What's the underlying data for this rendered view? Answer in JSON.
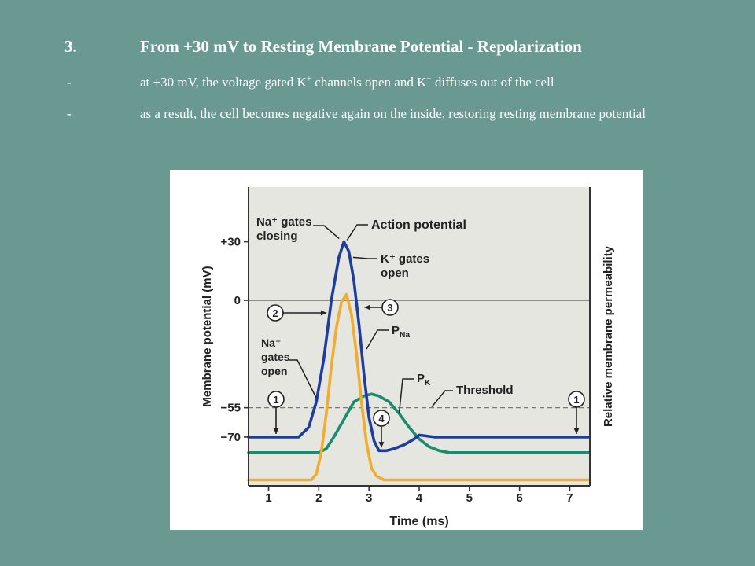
{
  "slide": {
    "title_number": "3.",
    "title_text": "From +30 mV to Resting Membrane Potential - Repolarization",
    "bullets": [
      {
        "dash": "-",
        "pre": "at +30 mV, the voltage gated K",
        "sup1": "+",
        "mid": " channels open and K",
        "sup2": "+",
        "post": " diffuses out of the cell"
      },
      {
        "dash": "-",
        "text": "as a result, the cell becomes negative again on the inside, restoring resting membrane potential"
      }
    ]
  },
  "chart_data": {
    "type": "line",
    "xlabel": "Time (ms)",
    "ylabel_left": "Membrane potential (mV)",
    "ylabel_right": "Relative membrane permeability",
    "x_ticks": [
      "1",
      "2",
      "3",
      "4",
      "5",
      "6",
      "7"
    ],
    "y_ticks": [
      "+30",
      "0",
      "−55",
      "−70"
    ],
    "xlim": [
      0.6,
      7.4
    ],
    "ylim": [
      -95,
      58
    ],
    "threshold_mv": -55,
    "resting_mv": -70,
    "zero_line_mv": 0,
    "grid": false,
    "series": [
      {
        "name": "Action potential",
        "color": "#1f3e9c",
        "x": [
          0.6,
          1.6,
          1.8,
          1.95,
          2.1,
          2.25,
          2.4,
          2.5,
          2.6,
          2.7,
          2.8,
          2.9,
          3.0,
          3.1,
          3.2,
          3.35,
          3.5,
          3.7,
          3.9,
          4.0,
          4.3,
          4.6,
          5.0,
          7.4
        ],
        "y": [
          -70,
          -70,
          -65,
          -52,
          -30,
          0,
          22,
          30,
          25,
          10,
          -12,
          -38,
          -60,
          -72,
          -77,
          -77,
          -76,
          -74,
          -71,
          -69,
          -70,
          -70,
          -70,
          -70
        ]
      },
      {
        "name": "P",
        "name_sub": "Na",
        "color": "#f0ad2f",
        "x": [
          0.6,
          1.85,
          1.95,
          2.05,
          2.15,
          2.25,
          2.35,
          2.45,
          2.55,
          2.65,
          2.75,
          2.85,
          2.95,
          3.05,
          3.15,
          3.3,
          3.5,
          7.4
        ],
        "y": [
          -92,
          -92,
          -89,
          -78,
          -58,
          -34,
          -14,
          -1,
          3,
          -7,
          -27,
          -52,
          -73,
          -86,
          -90,
          -92,
          -92,
          -92
        ]
      },
      {
        "name": "P",
        "name_sub": "K",
        "color": "#1a8b6e",
        "x": [
          0.6,
          1.85,
          2.0,
          2.15,
          2.3,
          2.5,
          2.7,
          2.9,
          3.05,
          3.2,
          3.4,
          3.6,
          3.8,
          4.0,
          4.2,
          4.4,
          4.6,
          4.9,
          5.2,
          7.4
        ],
        "y": [
          -78,
          -78,
          -78,
          -76,
          -70,
          -61,
          -52,
          -49,
          -48,
          -49,
          -52,
          -58,
          -65,
          -71,
          -75,
          -77,
          -78,
          -78,
          -78,
          -78
        ]
      }
    ],
    "annotations": {
      "na_closing": "Na⁺ gates closing",
      "action_potential": "Action potential",
      "k_open": "K⁺ gates open",
      "na_open": "Na⁺ gates open",
      "threshold": "Threshold",
      "p_na": "P",
      "p_na_sub": "Na",
      "p_k": "P",
      "p_k_sub": "K",
      "markers": [
        "1",
        "2",
        "3",
        "4",
        "1"
      ]
    },
    "colors": {
      "panel_bg": "#e5e6e0",
      "axis": "#333333",
      "zero_line": "#6f6f6f",
      "threshold_line": "#7a7a7a"
    }
  }
}
